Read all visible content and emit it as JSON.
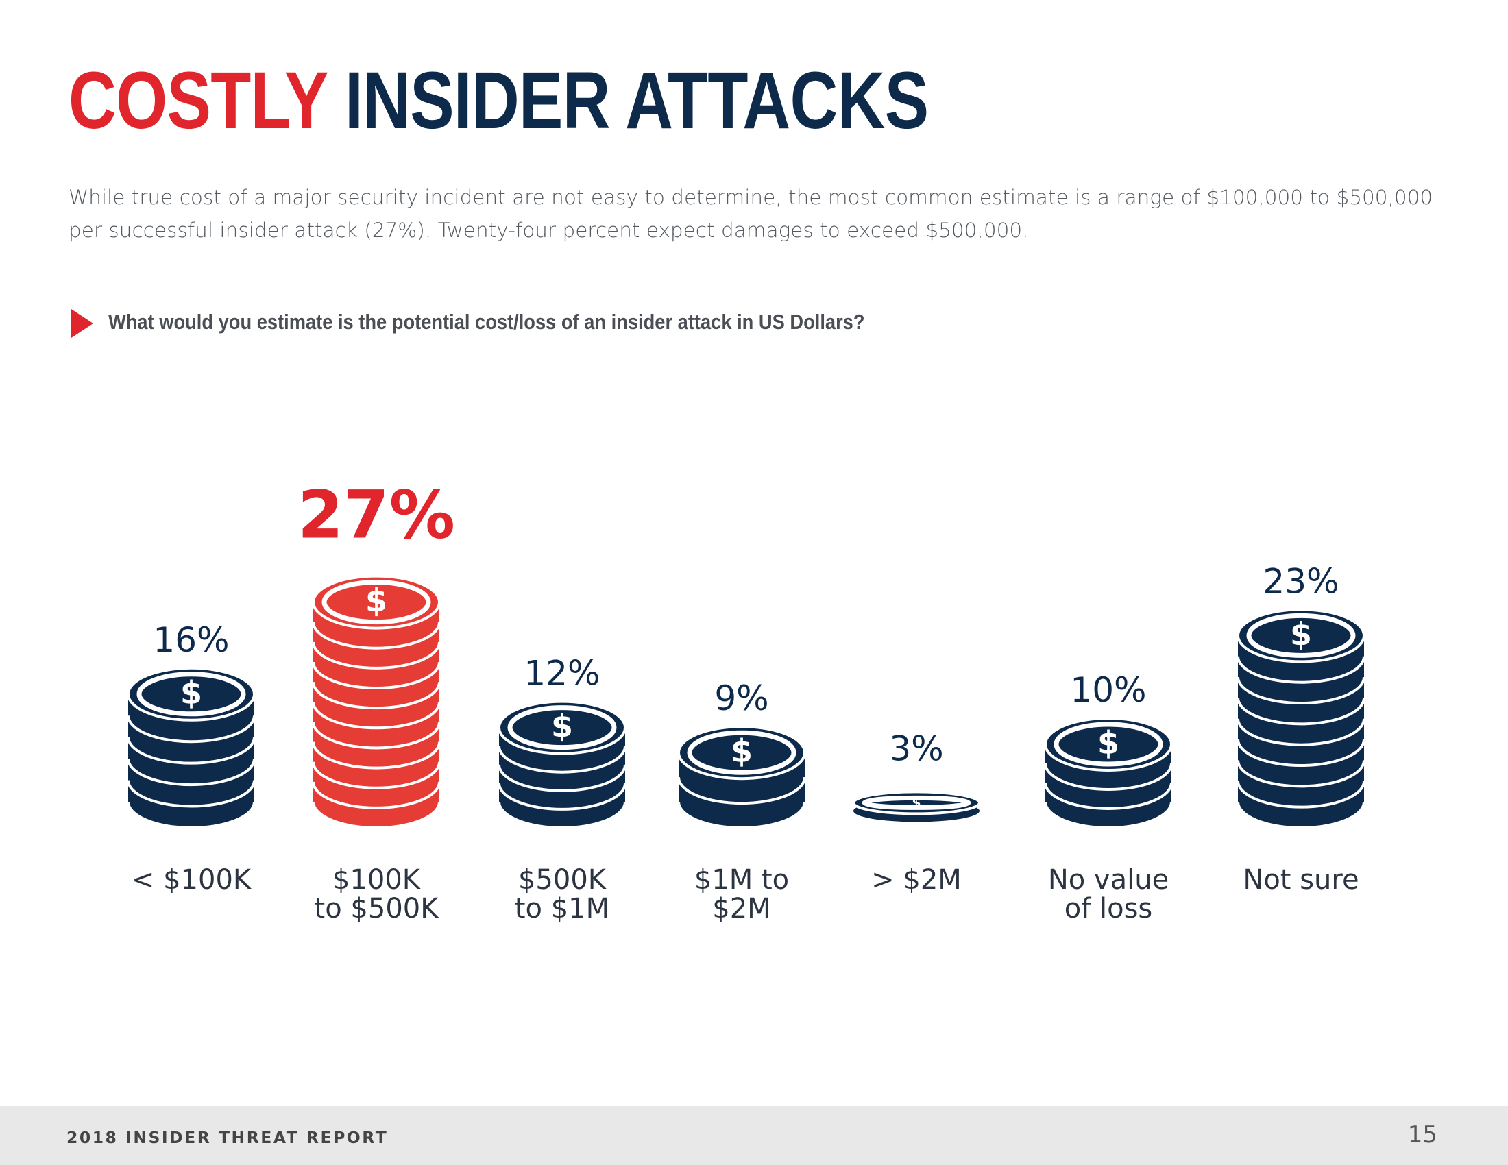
{
  "header": {
    "title_highlight": "COSTLY",
    "title_rest": "INSIDER ATTACKS",
    "intro": "While true cost of a major security incident are not easy to determine, the most common estimate is a range of $100,000 to $500,000 per successful insider attack (27%). Twenty-four percent expect damages to exceed $500,000."
  },
  "question": "What would you estimate is the potential cost/loss of an insider attack in US Dollars?",
  "colors": {
    "accent": "#e0252c",
    "coin_red": "#e53d36",
    "navy": "#0e2a4a"
  },
  "icon": "coin-stack-dollar-icon",
  "chart_data": {
    "type": "bar",
    "title": "",
    "categories": [
      [
        "< $100K"
      ],
      [
        "$100K",
        "to $500K"
      ],
      [
        "$500K",
        "to $1M"
      ],
      [
        "$1M to",
        "$2M"
      ],
      [
        "> $2M"
      ],
      [
        "No value",
        "of loss"
      ],
      [
        "Not sure"
      ]
    ],
    "values": [
      16,
      27,
      12,
      9,
      3,
      10,
      23
    ],
    "data_labels": [
      "16%",
      "27%",
      "12%",
      "9%",
      "3%",
      "10%",
      "23%"
    ],
    "highlight_index": 1,
    "unit": "%",
    "grid": false,
    "legend": "none"
  },
  "footer": {
    "report": "2018 INSIDER THREAT REPORT",
    "page": "15"
  }
}
